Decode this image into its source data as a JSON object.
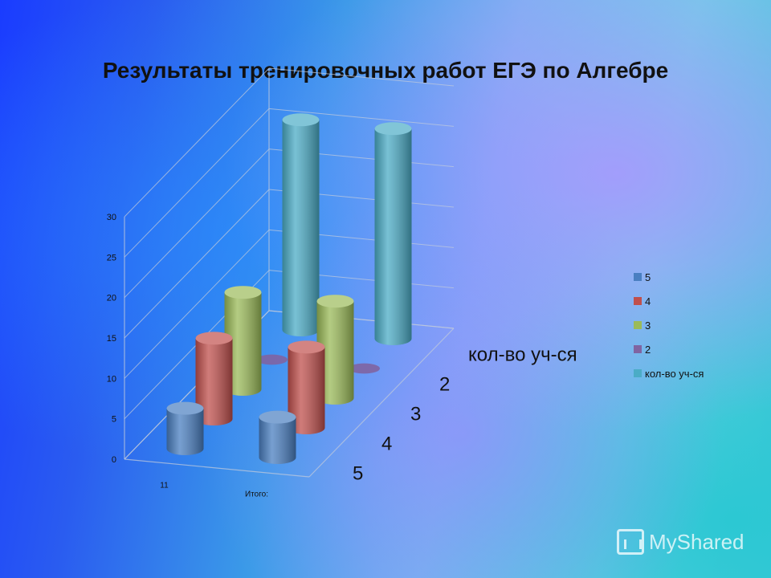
{
  "title": "Результаты тренировочных работ ЕГЭ по Алгебре",
  "chart_data": {
    "type": "bar",
    "shape": "cylinder-3d",
    "title": "Результаты тренировочных работ ЕГЭ по Алгебре",
    "categories": [
      "11",
      "Итого:"
    ],
    "ylim": [
      0,
      30
    ],
    "yticks": [
      0,
      5,
      10,
      15,
      20,
      25,
      30
    ],
    "series": [
      {
        "name": "5",
        "values": [
          5,
          5
        ],
        "color": "#4a7fc1"
      },
      {
        "name": "4",
        "values": [
          10,
          10
        ],
        "color": "#c0504d"
      },
      {
        "name": "3",
        "values": [
          12,
          12
        ],
        "color": "#9bbb59"
      },
      {
        "name": "2",
        "values": [
          0,
          0
        ],
        "color": "#8064a2"
      },
      {
        "name": "кол-во уч-ся",
        "values": [
          26,
          26
        ],
        "color": "#4bacc6"
      }
    ],
    "depth_labels": [
      "5",
      "4",
      "3",
      "2",
      "кол-во уч-ся"
    ],
    "legend_position": "right",
    "grid": true
  },
  "watermark": {
    "text": "MyShared"
  }
}
